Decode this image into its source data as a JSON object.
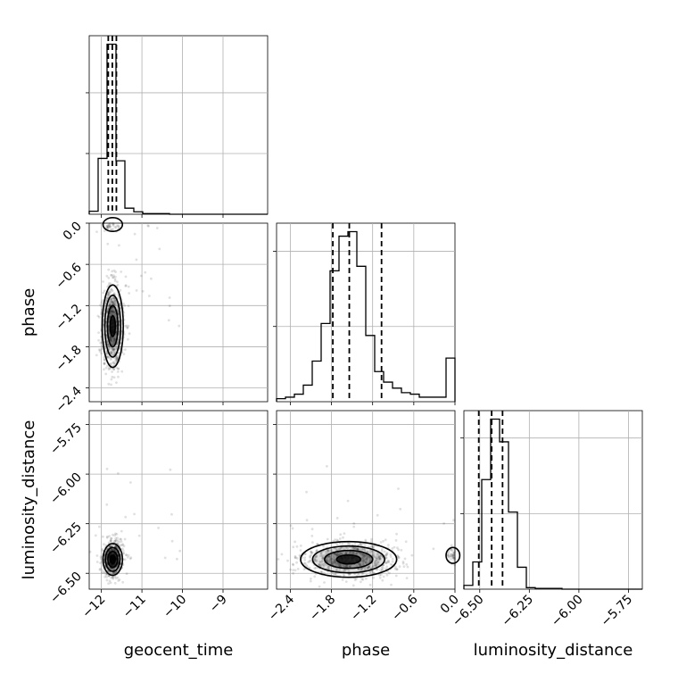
{
  "chart_data": {
    "type": "corner",
    "parameters": [
      "geocent_time",
      "phase",
      "luminosity_distance"
    ],
    "axis_labels": {
      "geocent_time": "geocent_time",
      "phase": "phase",
      "luminosity_distance": "luminosity_distance"
    },
    "ranges": {
      "geocent_time": [
        -12.3,
        -7.9
      ],
      "phase": [
        -2.6,
        0.0
      ],
      "luminosity_distance": [
        -6.58,
        -5.68
      ]
    },
    "ticks": {
      "geocent_time": [
        -12,
        -11,
        -10,
        -9
      ],
      "phase": [
        -2.4,
        -1.8,
        -1.2,
        -0.6,
        0.0
      ],
      "luminosity_distance": [
        -6.5,
        -6.25,
        -6.0,
        -5.75
      ]
    },
    "tick_labels": {
      "geocent_time": [
        "−12",
        "−11",
        "−10",
        "−9"
      ],
      "phase": [
        "−2.4",
        "−1.8",
        "−1.2",
        "−0.6",
        "0.0"
      ],
      "luminosity_distance": [
        "−6.50",
        "−6.25",
        "−6.00",
        "−5.75"
      ]
    },
    "quantiles": {
      "geocent_time": [
        -11.83,
        -11.73,
        -11.63
      ],
      "phase": [
        -1.78,
        -1.54,
        -1.07
      ],
      "luminosity_distance": [
        -6.505,
        -6.44,
        -6.385
      ]
    },
    "histograms": {
      "geocent_time": {
        "bin_edges": [
          -12.3,
          -12.08,
          -11.86,
          -11.64,
          -11.42,
          -11.2,
          -10.98,
          -10.76,
          -10.54,
          -10.32,
          -10.1,
          -9.88,
          -9.66,
          -9.44,
          -9.22,
          -9.0,
          -8.78,
          -8.56,
          -8.34,
          -8.12,
          -7.9
        ],
        "counts": [
          5,
          92,
          280,
          88,
          10,
          4,
          1,
          1,
          1,
          0,
          0,
          0,
          0,
          0,
          0,
          0,
          0,
          0,
          0,
          0
        ]
      },
      "phase": {
        "bin_edges": [
          -2.6,
          -2.47,
          -2.34,
          -2.21,
          -2.08,
          -1.95,
          -1.82,
          -1.69,
          -1.56,
          -1.43,
          -1.3,
          -1.17,
          -1.04,
          -0.91,
          -0.78,
          -0.65,
          -0.52,
          -0.39,
          -0.26,
          -0.13,
          0.0
        ],
        "counts": [
          2,
          3,
          5,
          11,
          27,
          52,
          87,
          110,
          113,
          90,
          44,
          20,
          13,
          9,
          6,
          5,
          3,
          3,
          3,
          29
        ]
      },
      "luminosity_distance": {
        "bin_edges": [
          -6.58,
          -6.535,
          -6.49,
          -6.445,
          -6.4,
          -6.355,
          -6.31,
          -6.265,
          -6.22,
          -6.175,
          -6.13,
          -6.085,
          -6.04,
          -5.995,
          -5.95,
          -5.905,
          -5.86,
          -5.815,
          -5.77,
          -5.725,
          -5.68
        ],
        "counts": [
          5,
          36,
          145,
          225,
          195,
          102,
          29,
          2,
          1,
          1,
          1,
          0,
          0,
          0,
          0,
          0,
          0,
          0,
          0,
          0
        ]
      }
    },
    "scatter_cores": [
      {
        "x": "geocent_time",
        "y": "phase",
        "cx": -11.72,
        "cy": -1.5,
        "sx": 0.13,
        "sy": 0.3,
        "secondary": {
          "cx": -11.72,
          "cy": -0.02,
          "sx": 0.12,
          "sy": 0.05
        }
      },
      {
        "x": "geocent_time",
        "y": "luminosity_distance",
        "cx": -11.72,
        "cy": -6.43,
        "sx": 0.12,
        "sy": 0.04
      },
      {
        "x": "phase",
        "y": "luminosity_distance",
        "cx": -1.55,
        "cy": -6.43,
        "sx": 0.35,
        "sy": 0.045,
        "secondary": {
          "cx": -0.03,
          "cy": -6.41,
          "sx": 0.05,
          "sy": 0.02
        }
      }
    ],
    "grid": true
  }
}
